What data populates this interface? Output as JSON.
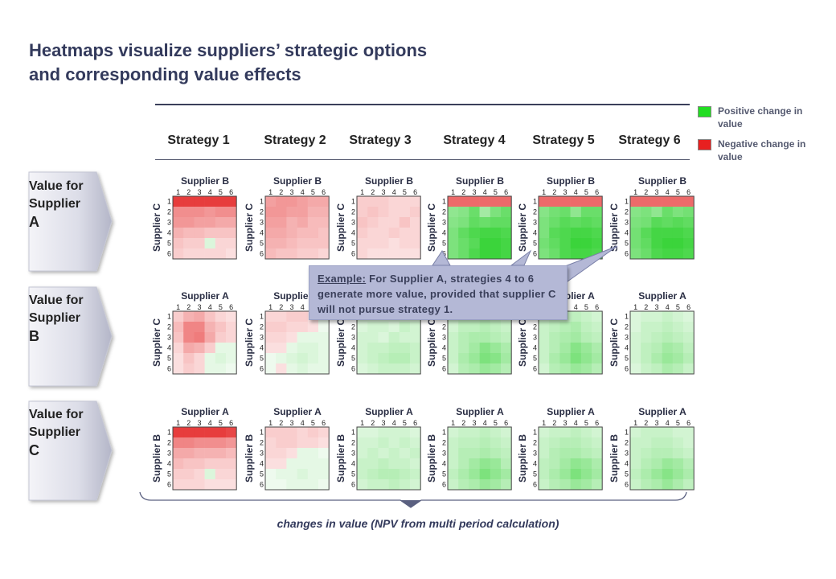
{
  "title": {
    "line1": "Heatmaps visualize suppliers’ strategic options",
    "line2": "and corresponding value effects"
  },
  "legend": {
    "positive": "Positive change in value",
    "negative": "Negative change in value",
    "positive_color": "#22dd22",
    "negative_color": "#e82020"
  },
  "callout": {
    "lead": "Example:",
    "text": " For Supplier A, strategies  4 to 6 generate more value, provided that supplier C will not pursue strategy 1."
  },
  "caption": "changes in value (NPV from multi period calculation)",
  "chart_data": {
    "type": "heatmap",
    "strategies": [
      "Strategy 1",
      "Strategy 2",
      "Strategy 3",
      "Strategy 4",
      "Strategy 5",
      "Strategy 6"
    ],
    "tick_labels": [
      "1",
      "2",
      "3",
      "4",
      "5",
      "6"
    ],
    "rows": [
      {
        "label_lines": [
          "Value for",
          "Supplier",
          "A"
        ],
        "x_label": "Supplier B",
        "y_label": "Supplier C"
      },
      {
        "label_lines": [
          "Value for",
          "Supplier",
          "B"
        ],
        "x_label": "Supplier A",
        "y_label": "Supplier C"
      },
      {
        "label_lines": [
          "Value for",
          "Supplier",
          "C"
        ],
        "x_label": "Supplier A",
        "y_label": "Supplier B"
      }
    ],
    "scale": "negative values red, positive values green, intensity proportional to magnitude",
    "grids": [
      [
        [
          [
            -0.95,
            -0.95,
            -0.95,
            -0.95,
            -0.95,
            -0.95
          ],
          [
            -0.5,
            -0.5,
            -0.5,
            -0.45,
            -0.5,
            -0.5
          ],
          [
            -0.45,
            -0.45,
            -0.4,
            -0.4,
            -0.35,
            -0.35
          ],
          [
            -0.3,
            -0.25,
            -0.25,
            -0.2,
            -0.2,
            -0.2
          ],
          [
            -0.2,
            -0.15,
            -0.15,
            0.1,
            -0.1,
            -0.1
          ],
          [
            -0.15,
            -0.1,
            -0.1,
            -0.1,
            -0.1,
            -0.05
          ]
        ],
        [
          [
            -0.4,
            -0.45,
            -0.45,
            -0.4,
            -0.35,
            -0.35
          ],
          [
            -0.45,
            -0.45,
            -0.4,
            -0.4,
            -0.3,
            -0.3
          ],
          [
            -0.4,
            -0.4,
            -0.3,
            -0.35,
            -0.25,
            -0.25
          ],
          [
            -0.35,
            -0.35,
            -0.3,
            -0.25,
            -0.25,
            -0.2
          ],
          [
            -0.3,
            -0.3,
            -0.25,
            -0.2,
            -0.2,
            -0.2
          ],
          [
            -0.25,
            -0.2,
            -0.2,
            -0.15,
            -0.15,
            -0.1
          ]
        ],
        [
          [
            -0.15,
            -0.15,
            -0.15,
            -0.1,
            -0.1,
            -0.1
          ],
          [
            -0.15,
            -0.2,
            -0.15,
            -0.1,
            -0.1,
            -0.15
          ],
          [
            -0.2,
            -0.15,
            -0.1,
            -0.1,
            -0.2,
            -0.1
          ],
          [
            -0.15,
            -0.1,
            -0.1,
            -0.15,
            -0.1,
            -0.1
          ],
          [
            -0.1,
            -0.1,
            -0.1,
            -0.05,
            -0.1,
            -0.1
          ],
          [
            -0.1,
            -0.05,
            -0.05,
            -0.05,
            -0.05,
            -0.05
          ]
        ],
        [
          [
            -0.7,
            -0.7,
            -0.7,
            -0.7,
            -0.7,
            -0.7
          ],
          [
            0.5,
            0.55,
            0.7,
            0.4,
            0.6,
            0.7
          ],
          [
            0.55,
            0.6,
            0.75,
            0.7,
            0.75,
            0.75
          ],
          [
            0.6,
            0.75,
            0.85,
            0.9,
            0.9,
            0.85
          ],
          [
            0.6,
            0.7,
            0.8,
            0.95,
            0.95,
            0.9
          ],
          [
            0.6,
            0.7,
            0.85,
            0.95,
            0.95,
            0.9
          ]
        ],
        [
          [
            -0.7,
            -0.7,
            -0.7,
            -0.7,
            -0.7,
            -0.7
          ],
          [
            0.55,
            0.65,
            0.7,
            0.5,
            0.7,
            0.7
          ],
          [
            0.6,
            0.7,
            0.8,
            0.75,
            0.8,
            0.75
          ],
          [
            0.6,
            0.8,
            0.85,
            0.9,
            0.9,
            0.85
          ],
          [
            0.65,
            0.75,
            0.85,
            0.95,
            0.95,
            0.9
          ],
          [
            0.6,
            0.7,
            0.85,
            0.9,
            0.9,
            0.85
          ]
        ],
        [
          [
            -0.7,
            -0.7,
            -0.7,
            -0.7,
            -0.7,
            -0.7
          ],
          [
            0.55,
            0.6,
            0.5,
            0.7,
            0.6,
            0.65
          ],
          [
            0.6,
            0.65,
            0.8,
            0.75,
            0.8,
            0.75
          ],
          [
            0.65,
            0.8,
            0.9,
            0.9,
            0.9,
            0.85
          ],
          [
            0.65,
            0.75,
            0.9,
            0.95,
            0.95,
            0.9
          ],
          [
            0.6,
            0.7,
            0.85,
            0.9,
            0.9,
            0.85
          ]
        ]
      ],
      [
        [
          [
            -0.15,
            -0.3,
            -0.35,
            -0.2,
            -0.1,
            -0.05
          ],
          [
            -0.25,
            -0.55,
            -0.55,
            -0.3,
            -0.2,
            -0.1
          ],
          [
            -0.2,
            -0.55,
            -0.6,
            -0.35,
            -0.15,
            -0.1
          ],
          [
            -0.1,
            -0.35,
            -0.3,
            -0.15,
            0.05,
            0.05
          ],
          [
            -0.05,
            -0.2,
            -0.1,
            0.05,
            0.1,
            0.05
          ],
          [
            -0.05,
            -0.15,
            -0.1,
            0.05,
            0.05,
            0.0
          ]
        ],
        [
          [
            -0.1,
            -0.1,
            -0.15,
            -0.15,
            -0.05,
            0.0
          ],
          [
            -0.15,
            -0.15,
            -0.1,
            -0.1,
            -0.05,
            0.0
          ],
          [
            -0.1,
            -0.1,
            -0.05,
            0.05,
            0.05,
            0.05
          ],
          [
            -0.05,
            -0.05,
            0.05,
            0.1,
            0.1,
            0.05
          ],
          [
            0.0,
            0.05,
            0.1,
            0.15,
            0.1,
            0.05
          ],
          [
            0.0,
            -0.05,
            0.05,
            0.1,
            0.05,
            0.05
          ]
        ],
        [
          [
            0.1,
            0.1,
            0.1,
            0.1,
            0.1,
            0.1
          ],
          [
            0.1,
            0.15,
            0.15,
            0.1,
            0.2,
            0.15
          ],
          [
            0.15,
            0.15,
            0.1,
            0.2,
            0.15,
            0.15
          ],
          [
            0.15,
            0.2,
            0.2,
            0.25,
            0.25,
            0.2
          ],
          [
            0.15,
            0.2,
            0.25,
            0.3,
            0.3,
            0.2
          ],
          [
            0.1,
            0.15,
            0.2,
            0.2,
            0.2,
            0.15
          ]
        ],
        [
          [
            0.15,
            0.2,
            0.2,
            0.25,
            0.2,
            0.15
          ],
          [
            0.15,
            0.25,
            0.25,
            0.3,
            0.25,
            0.2
          ],
          [
            0.2,
            0.3,
            0.35,
            0.35,
            0.3,
            0.25
          ],
          [
            0.2,
            0.3,
            0.4,
            0.55,
            0.45,
            0.35
          ],
          [
            0.2,
            0.35,
            0.45,
            0.6,
            0.55,
            0.4
          ],
          [
            0.15,
            0.3,
            0.35,
            0.45,
            0.4,
            0.3
          ]
        ],
        [
          [
            0.15,
            0.2,
            0.2,
            0.25,
            0.2,
            0.15
          ],
          [
            0.2,
            0.25,
            0.3,
            0.35,
            0.25,
            0.2
          ],
          [
            0.2,
            0.3,
            0.35,
            0.4,
            0.3,
            0.25
          ],
          [
            0.2,
            0.3,
            0.4,
            0.55,
            0.45,
            0.35
          ],
          [
            0.2,
            0.35,
            0.45,
            0.6,
            0.5,
            0.4
          ],
          [
            0.15,
            0.3,
            0.35,
            0.45,
            0.4,
            0.3
          ]
        ],
        [
          [
            0.1,
            0.15,
            0.15,
            0.2,
            0.15,
            0.1
          ],
          [
            0.1,
            0.2,
            0.2,
            0.25,
            0.2,
            0.15
          ],
          [
            0.15,
            0.2,
            0.25,
            0.3,
            0.25,
            0.2
          ],
          [
            0.15,
            0.25,
            0.3,
            0.4,
            0.35,
            0.25
          ],
          [
            0.15,
            0.25,
            0.35,
            0.45,
            0.4,
            0.3
          ],
          [
            0.1,
            0.2,
            0.25,
            0.35,
            0.3,
            0.2
          ]
        ]
      ],
      [
        [
          [
            -0.95,
            -0.95,
            -0.95,
            -0.95,
            -0.95,
            -0.9
          ],
          [
            -0.55,
            -0.55,
            -0.5,
            -0.5,
            -0.5,
            -0.45
          ],
          [
            -0.35,
            -0.35,
            -0.3,
            -0.3,
            -0.3,
            -0.25
          ],
          [
            -0.25,
            -0.2,
            -0.2,
            -0.15,
            -0.15,
            -0.15
          ],
          [
            -0.15,
            -0.15,
            -0.1,
            0.1,
            -0.1,
            -0.1
          ],
          [
            -0.1,
            -0.1,
            -0.1,
            -0.05,
            -0.05,
            -0.05
          ]
        ],
        [
          [
            -0.15,
            -0.15,
            -0.15,
            -0.1,
            -0.15,
            -0.1
          ],
          [
            -0.1,
            -0.15,
            -0.15,
            -0.1,
            -0.1,
            -0.05
          ],
          [
            -0.1,
            -0.1,
            -0.05,
            0.05,
            0.05,
            0.0
          ],
          [
            -0.05,
            -0.05,
            0.05,
            0.05,
            0.05,
            0.05
          ],
          [
            0.0,
            0.05,
            0.05,
            0.1,
            0.05,
            0.05
          ],
          [
            0.0,
            0.0,
            0.05,
            0.05,
            0.05,
            0.0
          ]
        ],
        [
          [
            0.1,
            0.1,
            0.15,
            0.15,
            0.15,
            0.1
          ],
          [
            0.15,
            0.15,
            0.2,
            0.15,
            0.2,
            0.15
          ],
          [
            0.15,
            0.2,
            0.15,
            0.2,
            0.15,
            0.2
          ],
          [
            0.2,
            0.2,
            0.25,
            0.2,
            0.2,
            0.15
          ],
          [
            0.2,
            0.25,
            0.3,
            0.3,
            0.25,
            0.2
          ],
          [
            0.15,
            0.2,
            0.2,
            0.25,
            0.2,
            0.15
          ]
        ],
        [
          [
            0.15,
            0.2,
            0.2,
            0.25,
            0.2,
            0.15
          ],
          [
            0.2,
            0.25,
            0.25,
            0.3,
            0.25,
            0.2
          ],
          [
            0.2,
            0.3,
            0.3,
            0.35,
            0.3,
            0.25
          ],
          [
            0.2,
            0.3,
            0.4,
            0.5,
            0.45,
            0.3
          ],
          [
            0.25,
            0.35,
            0.45,
            0.6,
            0.5,
            0.4
          ],
          [
            0.2,
            0.3,
            0.35,
            0.45,
            0.4,
            0.3
          ]
        ],
        [
          [
            0.15,
            0.2,
            0.2,
            0.25,
            0.2,
            0.15
          ],
          [
            0.2,
            0.25,
            0.3,
            0.3,
            0.25,
            0.2
          ],
          [
            0.2,
            0.3,
            0.35,
            0.35,
            0.3,
            0.25
          ],
          [
            0.25,
            0.3,
            0.4,
            0.5,
            0.45,
            0.35
          ],
          [
            0.25,
            0.35,
            0.45,
            0.6,
            0.5,
            0.4
          ],
          [
            0.2,
            0.3,
            0.35,
            0.45,
            0.4,
            0.3
          ]
        ],
        [
          [
            0.15,
            0.2,
            0.2,
            0.2,
            0.15,
            0.15
          ],
          [
            0.2,
            0.2,
            0.25,
            0.25,
            0.2,
            0.15
          ],
          [
            0.2,
            0.25,
            0.3,
            0.3,
            0.25,
            0.2
          ],
          [
            0.2,
            0.3,
            0.35,
            0.45,
            0.4,
            0.3
          ],
          [
            0.25,
            0.35,
            0.45,
            0.55,
            0.45,
            0.35
          ],
          [
            0.2,
            0.3,
            0.35,
            0.45,
            0.35,
            0.25
          ]
        ]
      ]
    ]
  }
}
